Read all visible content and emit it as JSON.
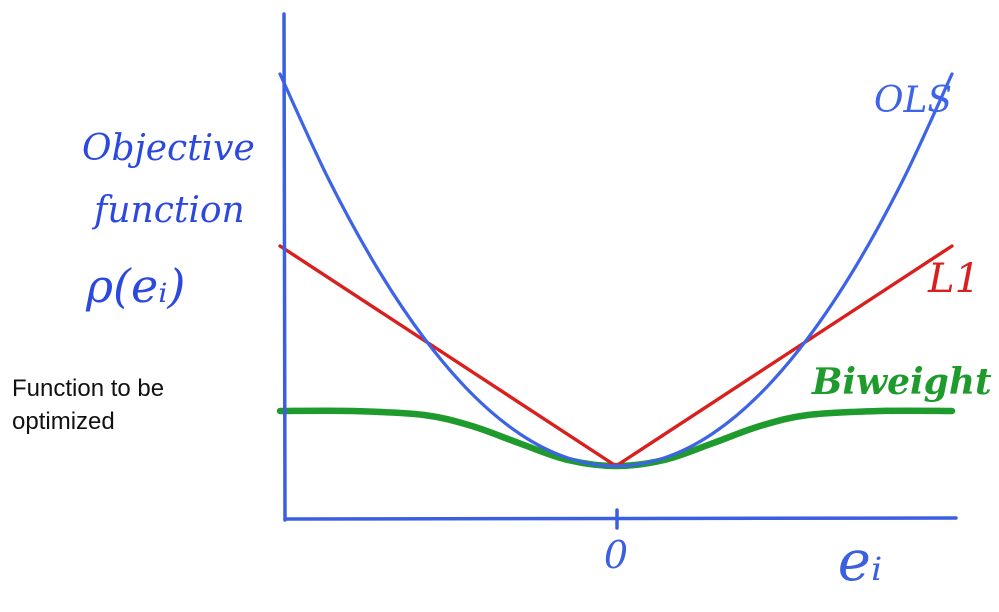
{
  "caption": "Function to be optimized",
  "chart_data": {
    "type": "line",
    "ylabel_lines": [
      "Objective",
      "function",
      "ρ(eᵢ)"
    ],
    "xlabel": "eᵢ",
    "x_tick_labels": [
      "0"
    ],
    "axis_color": "#3a5fe0",
    "series": [
      {
        "name": "OLS",
        "color": "#3d63e6",
        "function": "quadratic",
        "x": [
          -2.8,
          -2.4,
          -2.0,
          -1.6,
          -1.2,
          -0.8,
          -0.4,
          0,
          0.4,
          0.8,
          1.2,
          1.6,
          2.0,
          2.4,
          2.8
        ],
        "y": [
          7.84,
          5.76,
          4.0,
          2.56,
          1.44,
          0.64,
          0.16,
          0,
          0.16,
          0.64,
          1.44,
          2.56,
          4.0,
          5.76,
          7.84
        ]
      },
      {
        "name": "L1",
        "color": "#d8201f",
        "function": "absolute",
        "x": [
          -2.8,
          0,
          2.8
        ],
        "y": [
          4.4,
          0,
          4.4
        ]
      },
      {
        "name": "Biweight",
        "color": "#1f9a2c",
        "function": "bounded",
        "x": [
          -2.8,
          -2.2,
          -1.6,
          -1.2,
          -0.8,
          -0.4,
          0,
          0.4,
          0.8,
          1.2,
          1.6,
          2.2,
          2.8
        ],
        "y": [
          1.1,
          1.1,
          1.02,
          0.8,
          0.45,
          0.12,
          0,
          0.12,
          0.45,
          0.8,
          1.02,
          1.1,
          1.1
        ]
      }
    ],
    "xlim": [
      -2.8,
      2.8
    ],
    "ylim": [
      0,
      8
    ],
    "grid": false,
    "legend": "inline labels"
  }
}
